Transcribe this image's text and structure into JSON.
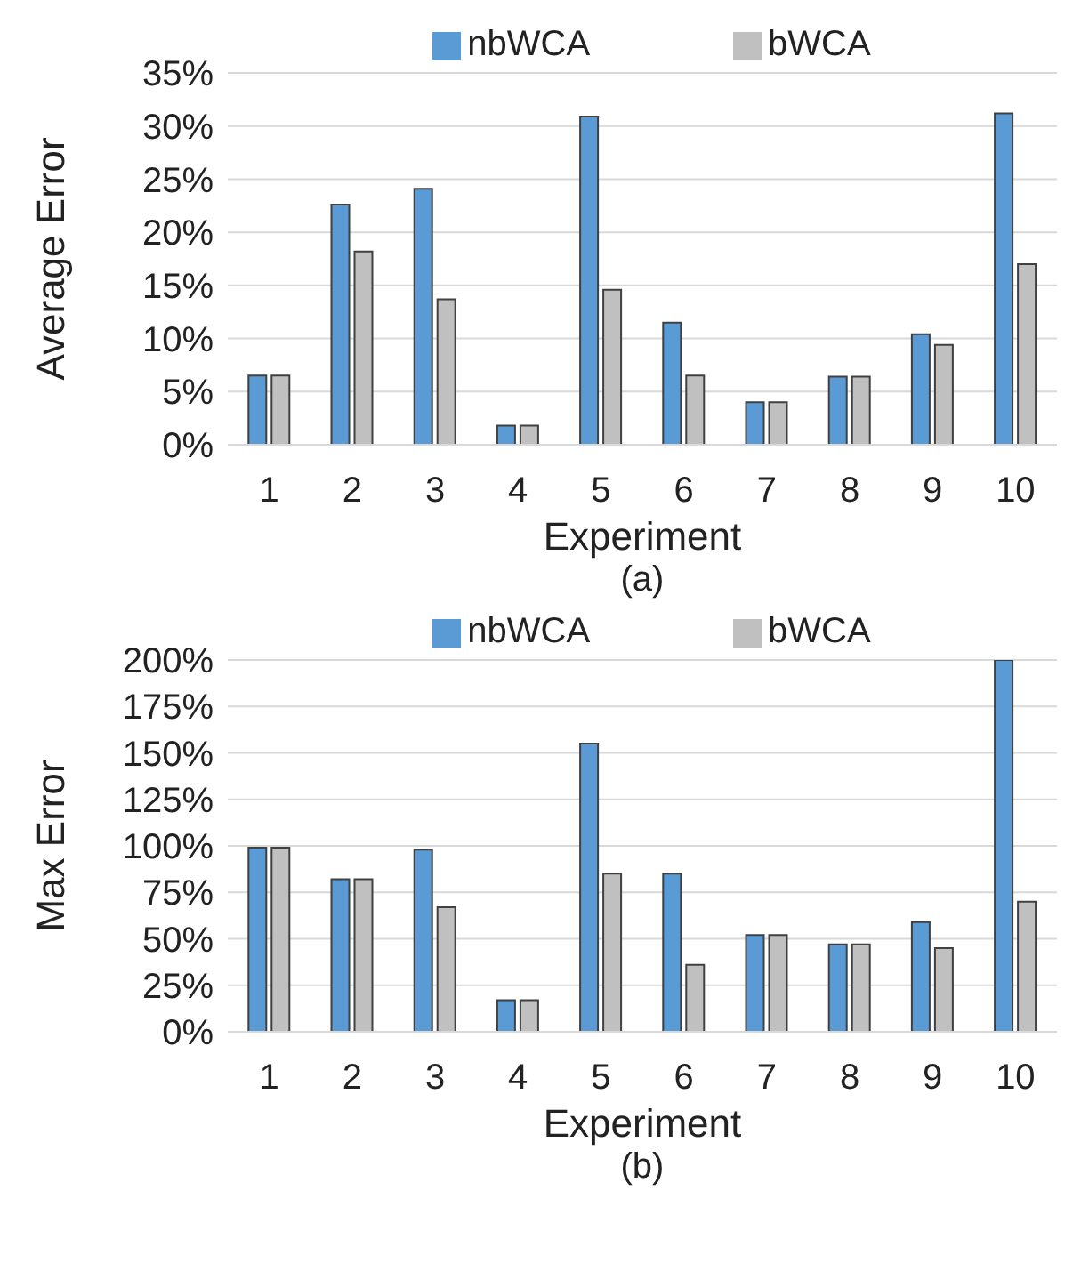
{
  "chart_data": [
    {
      "type": "bar",
      "categories": [
        "1",
        "2",
        "3",
        "4",
        "5",
        "6",
        "7",
        "8",
        "9",
        "10"
      ],
      "xlabel": "Experiment",
      "ylabel": "Average Error",
      "annotations": [
        "(a)"
      ],
      "series": [
        {
          "name": "nbWCA",
          "color": "#5b9bd5",
          "values": [
            6.5,
            22.6,
            24.1,
            1.8,
            30.9,
            11.5,
            4.0,
            6.4,
            10.4,
            31.2
          ]
        },
        {
          "name": "bWCA",
          "color": "#c0c0c0",
          "values": [
            6.5,
            18.2,
            13.7,
            1.8,
            14.6,
            6.5,
            4.0,
            6.4,
            9.4,
            17.0
          ]
        }
      ],
      "ylim": [
        0,
        35
      ],
      "yticks": [
        {
          "value": 0,
          "label": "0%"
        },
        {
          "value": 5,
          "label": "5%"
        },
        {
          "value": 10,
          "label": "10%"
        },
        {
          "value": 15,
          "label": "15%"
        },
        {
          "value": 20,
          "label": "20%"
        },
        {
          "value": 25,
          "label": "25%"
        },
        {
          "value": 30,
          "label": "30%"
        },
        {
          "value": 35,
          "label": "35%"
        }
      ],
      "grid": "y",
      "legend": "top"
    },
    {
      "type": "bar",
      "categories": [
        "1",
        "2",
        "3",
        "4",
        "5",
        "6",
        "7",
        "8",
        "9",
        "10"
      ],
      "xlabel": "Experiment",
      "ylabel": "Max Error",
      "annotations": [
        "(b)"
      ],
      "series": [
        {
          "name": "nbWCA",
          "color": "#5b9bd5",
          "values": [
            99,
            82,
            98,
            17,
            155,
            85,
            52,
            47,
            59,
            200
          ]
        },
        {
          "name": "bWCA",
          "color": "#c0c0c0",
          "values": [
            99,
            82,
            67,
            17,
            85,
            36,
            52,
            47,
            45,
            70
          ]
        }
      ],
      "ylim": [
        0,
        200
      ],
      "yticks": [
        {
          "value": 0,
          "label": "0%"
        },
        {
          "value": 25,
          "label": "25%"
        },
        {
          "value": 50,
          "label": "50%"
        },
        {
          "value": 75,
          "label": "75%"
        },
        {
          "value": 100,
          "label": "100%"
        },
        {
          "value": 125,
          "label": "125%"
        },
        {
          "value": 150,
          "label": "150%"
        },
        {
          "value": 175,
          "label": "175%"
        },
        {
          "value": 200,
          "label": "200%"
        }
      ],
      "grid": "y",
      "legend": "top"
    }
  ]
}
